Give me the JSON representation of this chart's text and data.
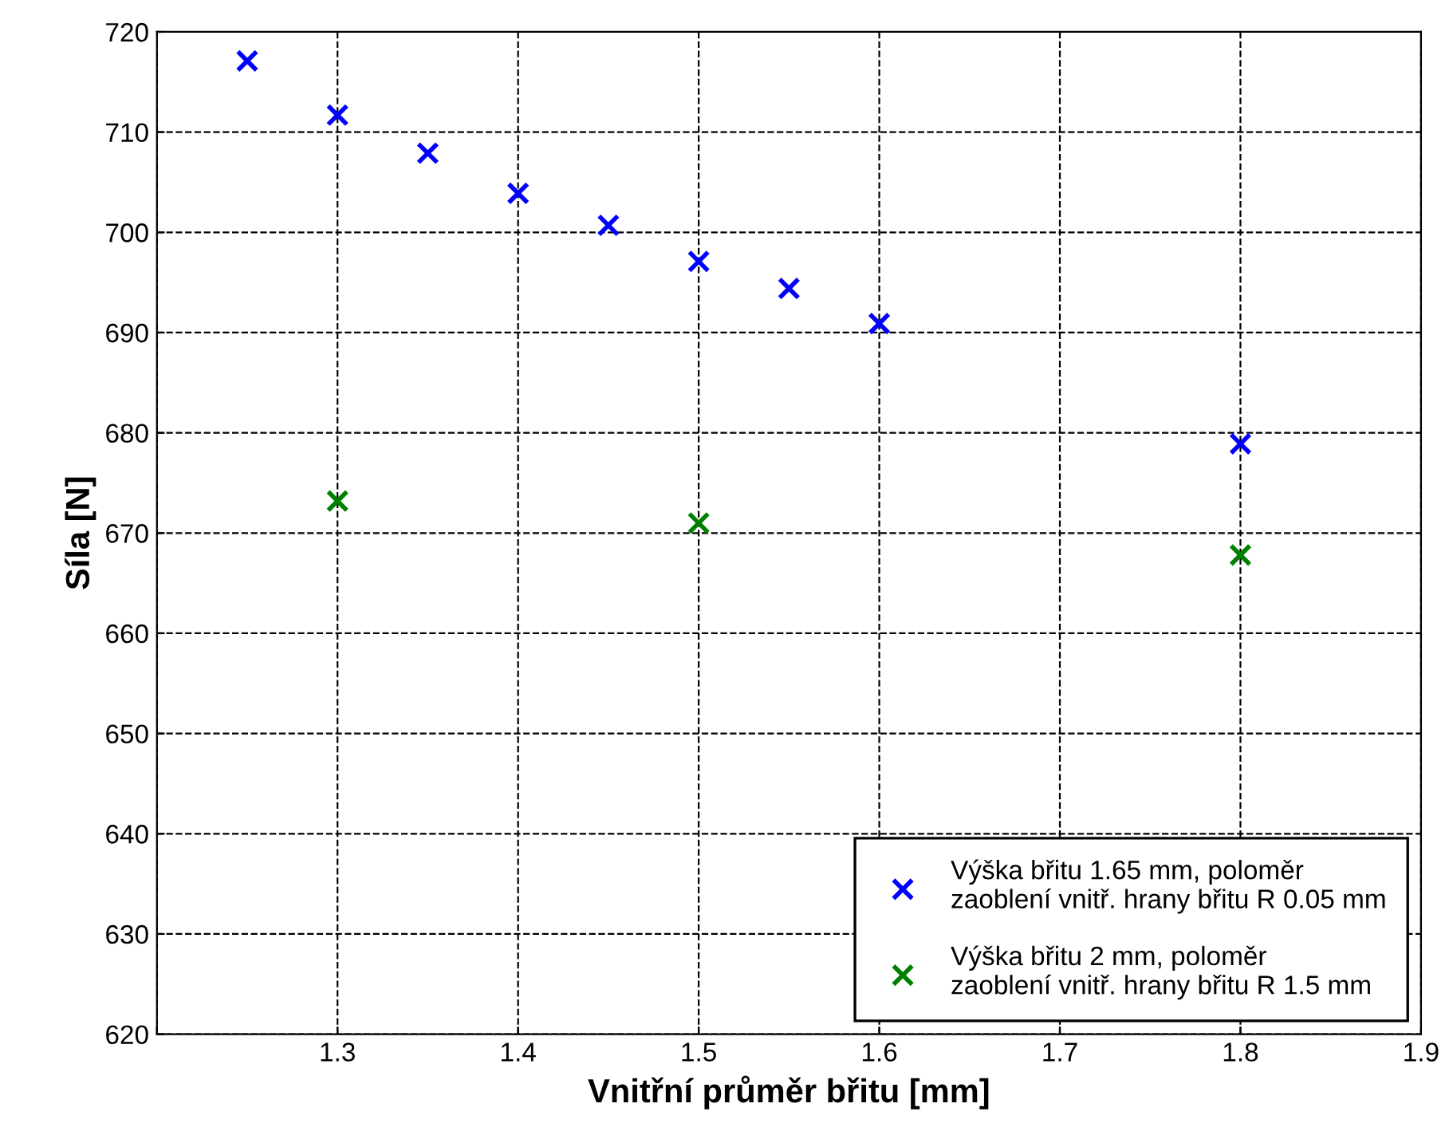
{
  "chart_data": {
    "type": "scatter",
    "xlabel": "Vnitřní průměr břitu [mm]",
    "ylabel": "Síla [N]",
    "xlim": [
      1.2,
      1.9
    ],
    "xticks": [
      {
        "value": 1.2,
        "label": null
      },
      1.3,
      1.4,
      1.5,
      1.6,
      1.7,
      1.8,
      1.9
    ],
    "ylim": [
      620,
      720
    ],
    "yticks": [
      620,
      630,
      640,
      650,
      660,
      670,
      680,
      690,
      700,
      710,
      720
    ],
    "grid": true,
    "legend": "bottom right",
    "marker": "cross",
    "series": [
      {
        "name": "Výška břitu 1.65 mm, poloměr\nzaoblení vnitř. hrany břitu R 0.05 mm",
        "color": "#0000ff",
        "x": [
          1.25,
          1.3,
          1.35,
          1.4,
          1.45,
          1.5,
          1.55,
          1.6,
          1.8
        ],
        "values": [
          717.1,
          711.7,
          707.9,
          703.9,
          700.7,
          697.1,
          694.4,
          690.9,
          678.9
        ]
      },
      {
        "name": "Výška břitu 2 mm, poloměr\nzaoblení vnitř. hrany břitu R 1.5 mm",
        "color": "#008000",
        "x": [
          1.3,
          1.5,
          1.8
        ],
        "values": [
          673.2,
          671.0,
          667.8
        ]
      }
    ]
  }
}
